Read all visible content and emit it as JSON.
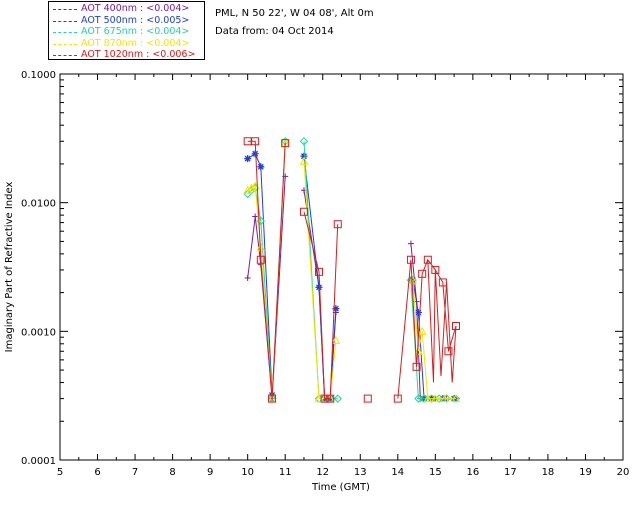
{
  "header": {
    "location": "PML, N 50 22', W 04 08', Alt 0m",
    "date_line": "Data from: 04 Oct 2014"
  },
  "legend": [
    {
      "label": "AOT  400nm : <0.004>",
      "color": "#7a1f9a"
    },
    {
      "label": "AOT  500nm : <0.005>",
      "color": "#1f3fd6"
    },
    {
      "label": "AOT  675nm : <0.004>",
      "color": "#22d6a0"
    },
    {
      "label": "AOT  870nm : <0.004>",
      "color": "#f2e600"
    },
    {
      "label": "AOT 1020nm : <0.006>",
      "color": "#d41e1e"
    }
  ],
  "chart_data": {
    "type": "scatter",
    "xlabel": "Time (GMT)",
    "ylabel": "Imaginary Part of Refractive Index",
    "xlim": [
      5,
      20
    ],
    "ylim": [
      0.0001,
      0.1
    ],
    "yscale": "log",
    "xticks": [
      "5",
      "6",
      "7",
      "8",
      "9",
      "10",
      "11",
      "12",
      "13",
      "14",
      "15",
      "16",
      "17",
      "18",
      "19",
      "20"
    ],
    "yticks": [
      "0.0001",
      "0.0010",
      "0.0100",
      "0.1000"
    ],
    "series": [
      {
        "name": "AOT  400nm : <0.004>",
        "color": "#7a1f9a",
        "marker": "plus",
        "x": [
          10.0,
          10.2,
          10.35,
          10.65,
          11.0,
          11.5,
          11.9,
          12.05,
          12.2,
          12.35,
          14.35,
          14.5,
          14.6,
          14.75,
          15.0,
          15.3,
          15.55
        ],
        "y": [
          0.0026,
          0.0078,
          0.0033,
          0.0003,
          0.016,
          0.0125,
          0.0022,
          0.0003,
          0.0003,
          0.0014,
          0.0048,
          0.0017,
          0.0003,
          0.0003,
          0.0003,
          0.0003,
          0.0003
        ]
      },
      {
        "name": "AOT  500nm : <0.005>",
        "color": "#1f3fd6",
        "marker": "star",
        "x": [
          10.0,
          10.2,
          10.35,
          10.65,
          11.5,
          11.9,
          12.05,
          12.2,
          12.35,
          14.4,
          14.55,
          14.7,
          14.9,
          15.2,
          15.5
        ],
        "y": [
          0.022,
          0.024,
          0.019,
          0.00032,
          0.023,
          0.0022,
          0.0003,
          0.0003,
          0.0015,
          0.0025,
          0.0014,
          0.0003,
          0.0003,
          0.0003,
          0.0003
        ]
      },
      {
        "name": "AOT  675nm : <0.004>",
        "color": "#22d6a0",
        "marker": "diamond",
        "x": [
          10.0,
          10.1,
          10.2,
          10.35,
          10.65,
          11.0,
          11.5,
          11.9,
          12.05,
          12.2,
          12.4,
          14.35,
          14.55,
          14.7,
          14.9,
          15.1,
          15.3,
          15.55
        ],
        "y": [
          0.0117,
          0.0125,
          0.013,
          0.0072,
          0.0003,
          0.03,
          0.03,
          0.0003,
          0.0003,
          0.0003,
          0.0003,
          0.0025,
          0.0003,
          0.0003,
          0.0003,
          0.0003,
          0.0003,
          0.0003
        ]
      },
      {
        "name": "AOT  870nm : <0.004>",
        "color": "#f2e600",
        "marker": "triangle",
        "x": [
          10.0,
          10.1,
          10.2,
          10.35,
          10.65,
          11.0,
          11.5,
          11.9,
          12.05,
          12.2,
          12.35,
          14.4,
          14.55,
          14.65,
          14.8,
          15.0,
          15.25,
          15.55
        ],
        "y": [
          0.0125,
          0.013,
          0.0135,
          0.0045,
          0.0003,
          0.029,
          0.021,
          0.0003,
          0.0003,
          0.0003,
          0.00085,
          0.0025,
          0.0007,
          0.001,
          0.0003,
          0.0003,
          0.0003,
          0.0003
        ]
      },
      {
        "name": "AOT 1020nm : <0.006>",
        "color": "#d41e1e",
        "marker": "square",
        "x": [
          10.0,
          10.2,
          10.35,
          10.65,
          11.0,
          11.5,
          11.9,
          12.05,
          12.2,
          12.4,
          13.2,
          14.0,
          14.35,
          14.5,
          14.65,
          14.8,
          15.0,
          15.2,
          15.35,
          15.55
        ],
        "y": [
          0.03,
          0.03,
          0.0036,
          0.0003,
          0.029,
          0.0085,
          0.0029,
          0.0003,
          0.0003,
          0.0068,
          0.0003,
          0.0003,
          0.0036,
          0.00053,
          0.0028,
          0.0036,
          0.003,
          0.0024,
          0.0007,
          0.0011
        ]
      },
      {
        "name": "AOT 1020nm : <0.006>",
        "color": "#d41e1e",
        "marker": "none",
        "x": [
          14.8,
          14.95,
          15.0,
          15.15,
          15.3,
          15.45,
          15.55
        ],
        "y": [
          0.0036,
          0.0004,
          0.003,
          0.00045,
          0.0024,
          0.0004,
          0.0011
        ]
      }
    ]
  }
}
